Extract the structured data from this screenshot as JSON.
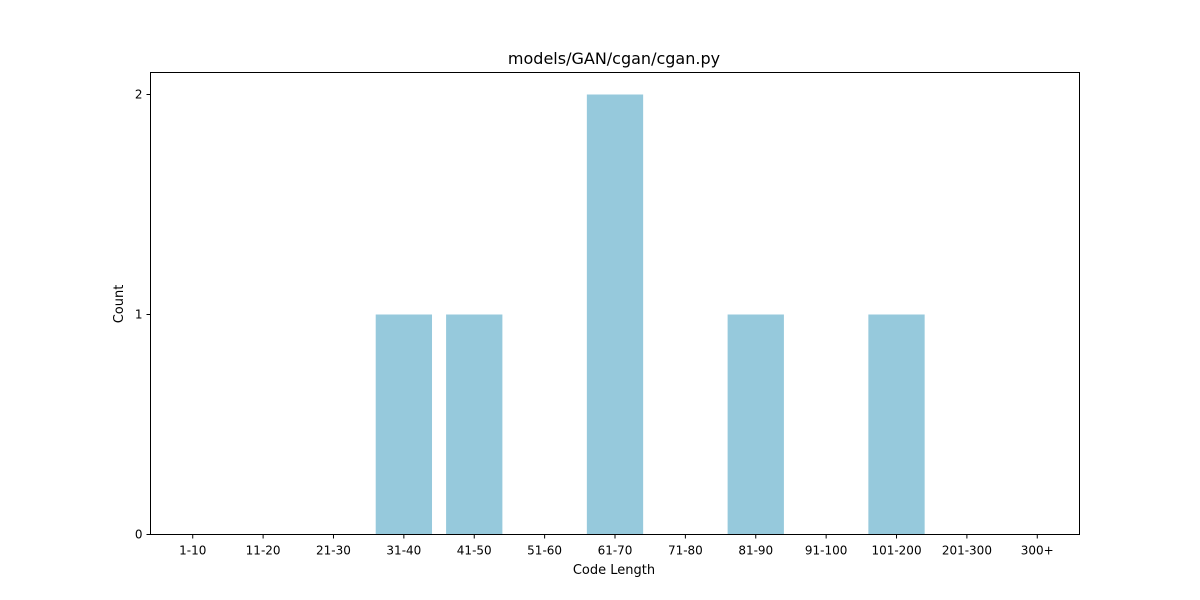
{
  "chart_data": {
    "type": "bar",
    "title": "models/GAN/cgan/cgan.py",
    "xlabel": "Code Length",
    "ylabel": "Count",
    "categories": [
      "1-10",
      "11-20",
      "21-30",
      "31-40",
      "41-50",
      "51-60",
      "61-70",
      "71-80",
      "81-90",
      "91-100",
      "101-200",
      "201-300",
      "300+"
    ],
    "values": [
      0,
      0,
      0,
      1,
      1,
      0,
      2,
      0,
      1,
      0,
      1,
      0,
      0
    ],
    "ylim": [
      0,
      2.1
    ],
    "yticks": [
      "0",
      "1",
      "2"
    ],
    "bar_color": "#96c9dc",
    "grid": false,
    "legend": false
  }
}
